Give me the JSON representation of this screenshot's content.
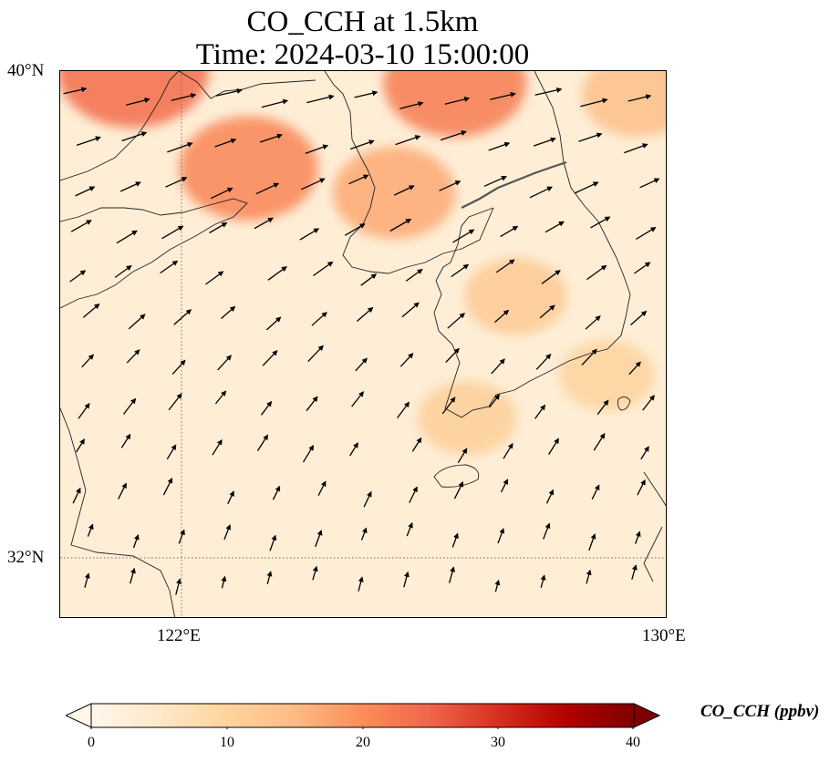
{
  "title_line1": "CO_CCH at 1.5km",
  "title_line2": "Time: 2024-03-10 15:00:00",
  "axes": {
    "y_ticks": [
      {
        "label": "40°N",
        "lat": 40
      },
      {
        "label": "32°N",
        "lat": 32
      }
    ],
    "x_ticks": [
      {
        "label": "122°E",
        "lon": 122
      },
      {
        "label": "130°E",
        "lon": 130
      }
    ],
    "lon_range": [
      120,
      130
    ],
    "lat_range": [
      31,
      40
    ],
    "gridlines": "dotted at 122°E and 32°N"
  },
  "colorbar": {
    "label": "CO_CCH (ppbv)",
    "ticks": [
      "0",
      "10",
      "20",
      "30",
      "40"
    ],
    "min": 0,
    "max": 40,
    "extend": "both",
    "colormap": "OrRd",
    "stops": [
      "#fff7ec",
      "#fee8c8",
      "#fdd49e",
      "#fdbb84",
      "#fc8d59",
      "#ef6548",
      "#d7301f",
      "#b30000",
      "#7f0000"
    ]
  },
  "field": {
    "description": "CO concentration field",
    "hotspots": [
      {
        "lon": 121.2,
        "lat": 40.0,
        "value": 24
      },
      {
        "lon": 123.1,
        "lat": 38.4,
        "value": 21
      },
      {
        "lon": 126.5,
        "lat": 39.8,
        "value": 22
      },
      {
        "lon": 125.5,
        "lat": 38.0,
        "value": 17
      },
      {
        "lon": 129.5,
        "lat": 39.6,
        "value": 14
      },
      {
        "lon": 127.5,
        "lat": 36.3,
        "value": 12
      },
      {
        "lon": 126.7,
        "lat": 34.3,
        "value": 11
      },
      {
        "lon": 129.0,
        "lat": 35.0,
        "value": 10
      }
    ],
    "background_value": 3
  },
  "wind_vectors": "eastward/northeastward wind arrows"
}
